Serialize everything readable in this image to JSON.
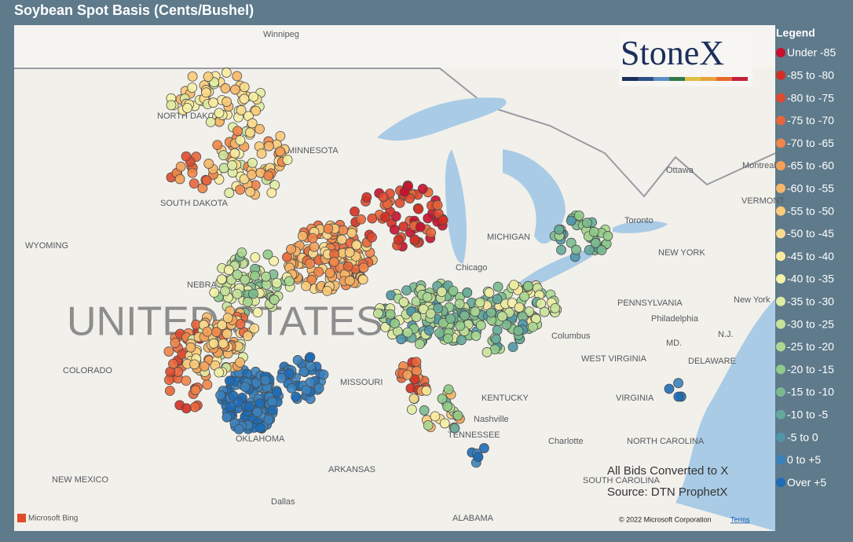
{
  "header": {
    "title": "Soybean Spot Basis (Cents/Bushel)"
  },
  "logo": "StoneX",
  "legend": {
    "title": "Legend",
    "items": [
      {
        "label": "Under -85",
        "color": "#c8102e"
      },
      {
        "label": "-85 to -80",
        "color": "#d32f24"
      },
      {
        "label": "-80 to -75",
        "color": "#de4a2f"
      },
      {
        "label": "-75 to -70",
        "color": "#e8663b"
      },
      {
        "label": "-70 to -65",
        "color": "#ef8548"
      },
      {
        "label": "-65 to -60",
        "color": "#f3a057"
      },
      {
        "label": "-60 to -55",
        "color": "#f6b768"
      },
      {
        "label": "-55 to -50",
        "color": "#f9cb7a"
      },
      {
        "label": "-50 to -45",
        "color": "#fbdc8c"
      },
      {
        "label": "-45 to -40",
        "color": "#fbe99d"
      },
      {
        "label": "-40 to -35",
        "color": "#f3f1a5"
      },
      {
        "label": "-35 to -30",
        "color": "#e0eca2"
      },
      {
        "label": "-30 to -25",
        "color": "#c8e29a"
      },
      {
        "label": "-25 to -20",
        "color": "#acd892"
      },
      {
        "label": "-20 to -15",
        "color": "#90cb89"
      },
      {
        "label": "-15 to -10",
        "color": "#7aba8f"
      },
      {
        "label": "-10 to -5",
        "color": "#64a89a"
      },
      {
        "label": "-5 to 0",
        "color": "#4f97a8"
      },
      {
        "label": "0 to +5",
        "color": "#3b82bd"
      },
      {
        "label": "Over +5",
        "color": "#1e6cb6"
      }
    ]
  },
  "map": {
    "watermark": "UNITED STATES",
    "labels": [
      "Winnipeg",
      "NORTH DAKOTA",
      "MINNESOTA",
      "SOUTH DAKOTA",
      "WYOMING",
      "NEBRASKA",
      "COLORADO",
      "MISSOURI",
      "OKLAHOMA",
      "ARKANSAS",
      "NEW MEXICO",
      "Dallas",
      "TENNESSEE",
      "Nashville",
      "KENTUCKY",
      "ALABAMA",
      "Chicago",
      "MICHIGAN",
      "Toronto",
      "Ottawa",
      "Montreal",
      "VERMONT",
      "NEW YORK",
      "PENNSYLVANIA",
      "New York",
      "Philadelphia",
      "Columbus",
      "WEST VIRGINIA",
      "MD.",
      "DELAWARE",
      "N.J.",
      "VIRGINIA",
      "NORTH CAROLINA",
      "Charlotte",
      "SOUTH CAROLINA"
    ],
    "attribution": "Microsoft Bing",
    "copyright": "© 2022 Microsoft Corporation",
    "terms": "Terms"
  },
  "notes": [
    "All Bids Converted to X",
    "Source: DTN ProphetX"
  ]
}
